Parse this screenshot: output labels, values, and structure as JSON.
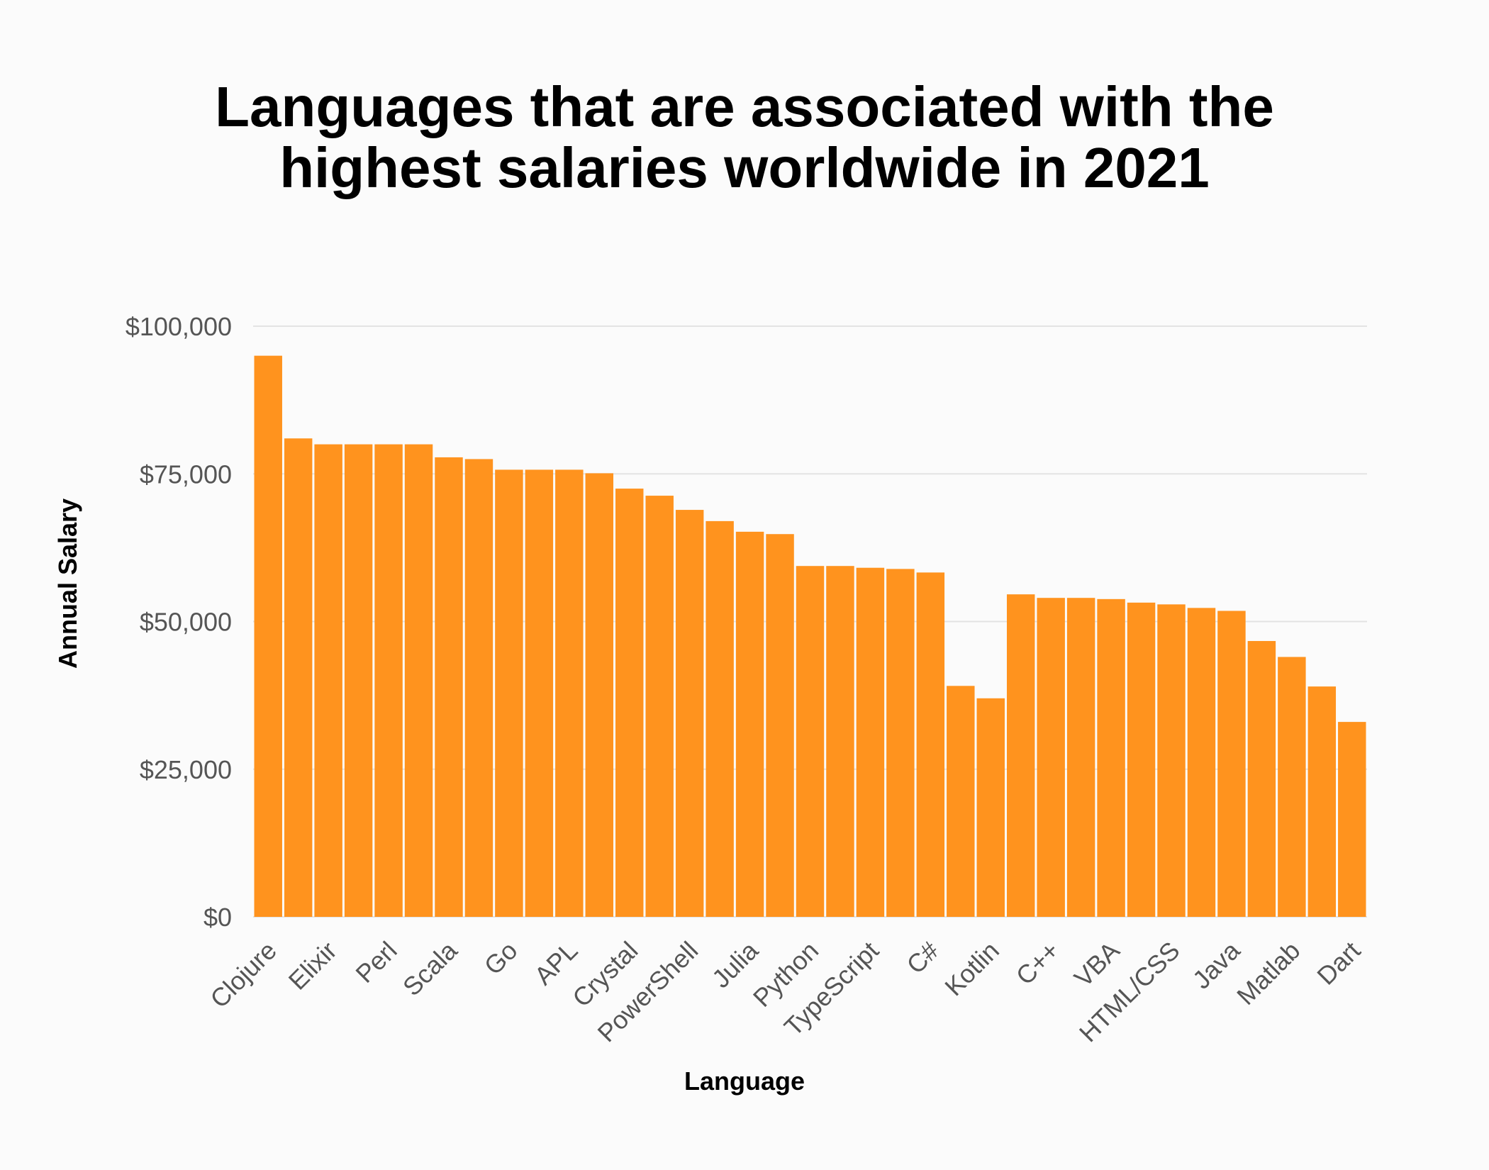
{
  "chart_data": {
    "type": "bar",
    "title_lines": [
      "Languages that are associated with the",
      "highest salaries worldwide in 2021"
    ],
    "xlabel": "Language",
    "ylabel": "Annual Salary",
    "ylim": [
      0,
      100000
    ],
    "yticks": [
      "$0",
      "$25,000",
      "$50,000",
      "$75,000",
      "$100,000"
    ],
    "ytick_values": [
      0,
      25000,
      50000,
      75000,
      100000
    ],
    "grid": true,
    "bar_color": "#ff931e",
    "categories": [
      "Clojure",
      "",
      "Elixir",
      "",
      "Perl",
      "",
      "Scala",
      "",
      "Go",
      "",
      "APL",
      "",
      "Crystal",
      "",
      "PowerShell",
      "",
      "Julia",
      "",
      "Python",
      "",
      "TypeScript",
      "",
      "C#",
      "",
      "Kotlin",
      "",
      "C++",
      "",
      "VBA",
      "",
      "HTML/CSS",
      "",
      "Java",
      "",
      "Matlab",
      "",
      "Dart"
    ],
    "values": [
      95000,
      81000,
      80000,
      80000,
      80000,
      80000,
      77800,
      77500,
      75700,
      75700,
      75700,
      75100,
      72500,
      71300,
      68900,
      67000,
      65200,
      64800,
      59400,
      59400,
      59100,
      58900,
      58300,
      39100,
      37000,
      54600,
      54000,
      54000,
      53800,
      53200,
      52900,
      52300,
      51800,
      46700,
      44000,
      39000,
      33000
    ]
  }
}
